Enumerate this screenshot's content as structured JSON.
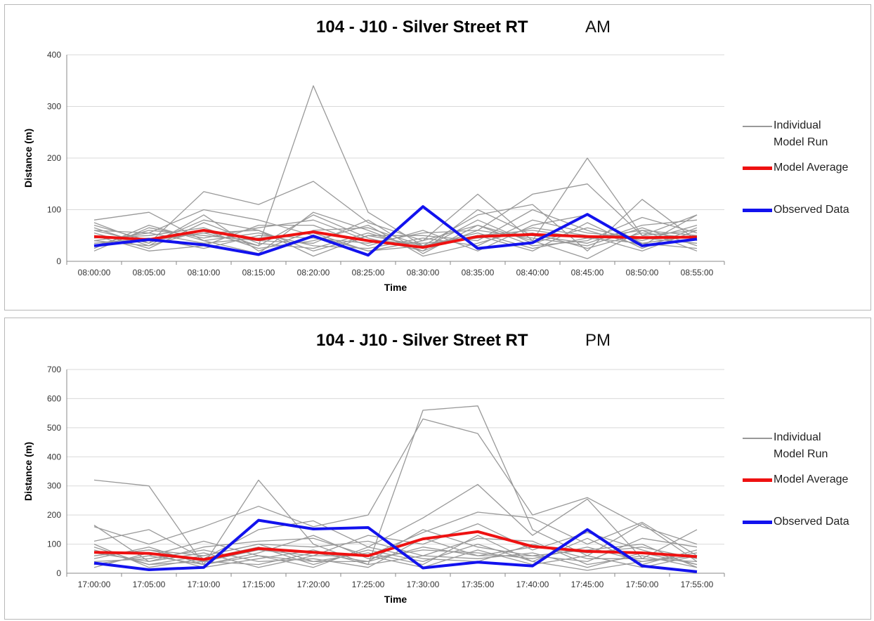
{
  "chart_data": [
    {
      "type": "line",
      "title": "104 - J10 - Silver Street RT",
      "period": "AM",
      "xlabel": "Time",
      "ylabel": "Distance (m)",
      "ylim": [
        0,
        400
      ],
      "yticks": [
        0,
        100,
        200,
        300,
        400
      ],
      "grid": true,
      "legend_position": "right",
      "categories": [
        "08:00:00",
        "08:05:00",
        "08:10:00",
        "08:15:00",
        "08:20:00",
        "08:25:00",
        "08:30:00",
        "08:35:00",
        "08:40:00",
        "08:45:00",
        "08:50:00",
        "08:55:00"
      ],
      "series": [
        {
          "name": "Individual Model Run",
          "color": "#999999",
          "width": 1.3,
          "runs": [
            [
              70,
              40,
              55,
              30,
              340,
              95,
              30,
              50,
              60,
              45,
              60,
              50
            ],
            [
              60,
              35,
              135,
              110,
              155,
              75,
              40,
              130,
              40,
              200,
              50,
              60
            ],
            [
              80,
              95,
              40,
              15,
              95,
              60,
              20,
              60,
              130,
              150,
              50,
              90
            ],
            [
              40,
              55,
              100,
              80,
              50,
              20,
              30,
              90,
              110,
              20,
              120,
              40
            ],
            [
              75,
              35,
              80,
              60,
              20,
              50,
              50,
              40,
              100,
              60,
              30,
              90
            ],
            [
              30,
              60,
              50,
              40,
              35,
              80,
              15,
              70,
              30,
              40,
              85,
              55
            ],
            [
              50,
              20,
              30,
              70,
              70,
              30,
              60,
              20,
              70,
              90,
              35,
              25
            ],
            [
              45,
              50,
              65,
              30,
              90,
              45,
              20,
              100,
              50,
              35,
              70,
              80
            ],
            [
              25,
              70,
              40,
              55,
              30,
              25,
              45,
              30,
              80,
              55,
              45,
              35
            ],
            [
              65,
              30,
              90,
              20,
              60,
              65,
              30,
              50,
              20,
              75,
              25,
              65
            ],
            [
              35,
              45,
              25,
              50,
              45,
              35,
              55,
              60,
              45,
              30,
              65,
              30
            ],
            [
              55,
              25,
              75,
              35,
              25,
              55,
              25,
              80,
              35,
              65,
              40,
              70
            ],
            [
              20,
              65,
              45,
              65,
              80,
              40,
              35,
              45,
              55,
              25,
              55,
              45
            ],
            [
              40,
              30,
              60,
              25,
              40,
              70,
              10,
              35,
              65,
              50,
              20,
              60
            ],
            [
              60,
              55,
              35,
              45,
              55,
              20,
              40,
              70,
              40,
              5,
              60,
              20
            ],
            [
              30,
              40,
              55,
              60,
              10,
              50,
              30,
              55,
              25,
              45,
              35,
              50
            ]
          ]
        },
        {
          "name": "Model Average",
          "color": "#ee1111",
          "width": 4,
          "values": [
            48,
            42,
            60,
            42,
            57,
            40,
            27,
            48,
            52,
            48,
            46,
            47
          ]
        },
        {
          "name": "Observed Data",
          "color": "#1212ee",
          "width": 4,
          "values": [
            30,
            42,
            32,
            13,
            49,
            12,
            106,
            25,
            36,
            91,
            30,
            43
          ]
        }
      ]
    },
    {
      "type": "line",
      "title": "104 - J10 - Silver Street RT",
      "period": "PM",
      "xlabel": "Time",
      "ylabel": "Distance (m)",
      "ylim": [
        0,
        700
      ],
      "yticks": [
        0,
        100,
        200,
        300,
        400,
        500,
        600,
        700
      ],
      "grid": true,
      "legend_position": "right",
      "categories": [
        "17:00:00",
        "17:05:00",
        "17:10:00",
        "17:15:00",
        "17:20:00",
        "17:25:00",
        "17:30:00",
        "17:35:00",
        "17:40:00",
        "17:45:00",
        "17:50:00",
        "17:55:00"
      ],
      "series": [
        {
          "name": "Individual Model Run",
          "color": "#999999",
          "width": 1.3,
          "runs": [
            [
              320,
              300,
              30,
              320,
              100,
              30,
              560,
              575,
              150,
              60,
              170,
              40
            ],
            [
              160,
              100,
              160,
              230,
              160,
              200,
              530,
              480,
              200,
              260,
              160,
              100
            ],
            [
              110,
              150,
              50,
              150,
              180,
              90,
              190,
              305,
              130,
              255,
              50,
              150
            ],
            [
              165,
              40,
              90,
              110,
              120,
              60,
              140,
              210,
              190,
              100,
              175,
              60
            ],
            [
              60,
              80,
              40,
              80,
              60,
              130,
              100,
              170,
              80,
              140,
              80,
              30
            ],
            [
              30,
              60,
              110,
              60,
              40,
              40,
              150,
              90,
              60,
              40,
              120,
              90
            ],
            [
              80,
              30,
              60,
              100,
              90,
              110,
              60,
              120,
              110,
              30,
              60,
              20
            ],
            [
              50,
              90,
              30,
              70,
              130,
              50,
              80,
              70,
              50,
              90,
              40,
              70
            ],
            [
              40,
              50,
              80,
              40,
              50,
              20,
              120,
              60,
              90,
              70,
              90,
              50
            ],
            [
              100,
              20,
              50,
              90,
              30,
              80,
              40,
              100,
              40,
              120,
              30,
              80
            ],
            [
              20,
              70,
              20,
              50,
              80,
              30,
              60,
              50,
              70,
              20,
              70,
              30
            ],
            [
              70,
              40,
              70,
              20,
              60,
              60,
              20,
              80,
              30,
              60,
              20,
              60
            ],
            [
              30,
              60,
              30,
              60,
              20,
              90,
              50,
              40,
              100,
              50,
              50,
              40
            ],
            [
              90,
              30,
              40,
              30,
              70,
              40,
              90,
              60,
              60,
              80,
              100,
              20
            ],
            [
              60,
              80,
              60,
              100,
              40,
              70,
              30,
              130,
              40,
              10,
              40,
              60
            ]
          ]
        },
        {
          "name": "Model Average",
          "color": "#ee1111",
          "width": 4,
          "values": [
            72,
            68,
            47,
            85,
            72,
            60,
            118,
            143,
            92,
            75,
            70,
            57
          ]
        },
        {
          "name": "Observed Data",
          "color": "#1212ee",
          "width": 4,
          "values": [
            35,
            12,
            20,
            182,
            152,
            157,
            18,
            38,
            25,
            150,
            25,
            5
          ]
        }
      ]
    }
  ],
  "legend": {
    "items": [
      {
        "label": "Individual Model Run",
        "label_line1": "Individual",
        "label_line2": "Model Run",
        "color": "#999999"
      },
      {
        "label": "Model Average",
        "color": "#ee1111"
      },
      {
        "label": "Observed Data",
        "color": "#1212ee"
      }
    ]
  }
}
